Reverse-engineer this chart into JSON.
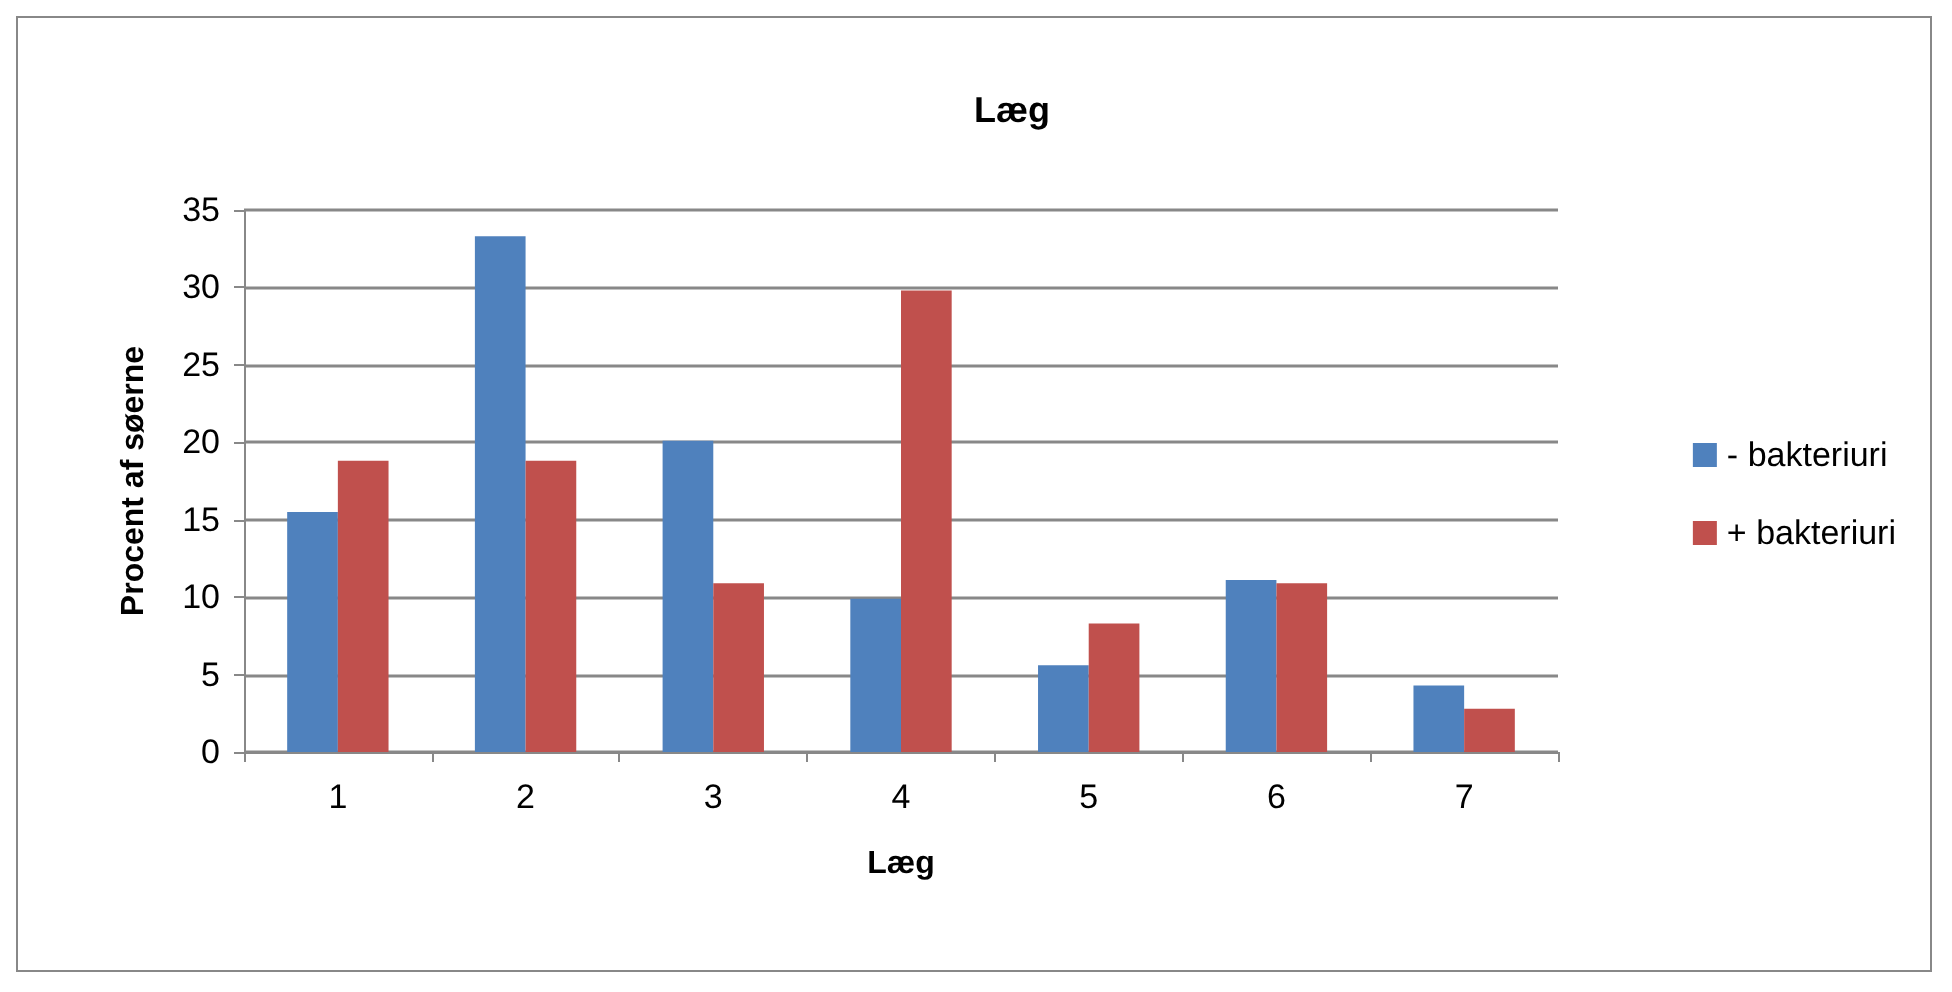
{
  "chart_data": {
    "type": "bar",
    "title": "Læg",
    "xlabel": "Læg",
    "ylabel": "Procent af søerne",
    "categories": [
      "1",
      "2",
      "3",
      "4",
      "5",
      "6",
      "7"
    ],
    "series": [
      {
        "name": "- bakteriuri",
        "color": "#4f81bd",
        "values": [
          15.5,
          33.3,
          20.1,
          9.9,
          5.6,
          11.1,
          4.3
        ]
      },
      {
        "name": "+ bakteriuri",
        "color": "#c0504d",
        "values": [
          18.8,
          18.8,
          10.9,
          29.8,
          8.3,
          10.9,
          2.8
        ]
      }
    ],
    "ylim": [
      0,
      35
    ],
    "yticks": [
      0,
      5,
      10,
      15,
      20,
      25,
      30,
      35
    ],
    "grid": "y",
    "legend": "right"
  }
}
